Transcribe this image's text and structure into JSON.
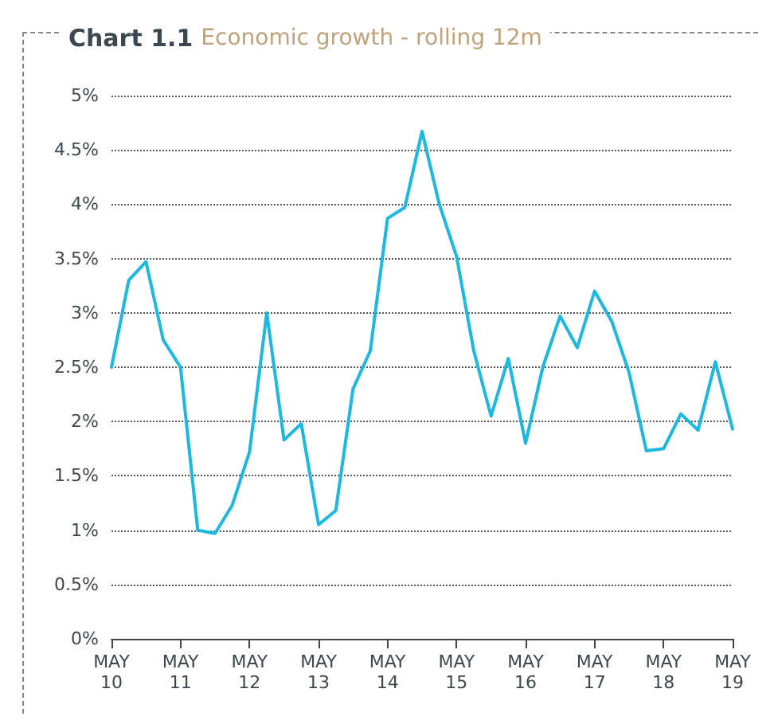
{
  "chart_data": {
    "type": "line",
    "title": "Chart 1.1",
    "subtitle": "Economic growth - rolling 12m",
    "categories": [
      "MAY 10",
      null,
      null,
      null,
      "MAY 11",
      null,
      null,
      null,
      "MAY 12",
      null,
      null,
      null,
      "MAY 13",
      null,
      null,
      null,
      "MAY 14",
      null,
      null,
      null,
      "MAY 15",
      null,
      null,
      null,
      "MAY 16",
      null,
      null,
      null,
      "MAY 17",
      null,
      null,
      null,
      "MAY 18",
      null,
      null,
      null,
      "MAY 19"
    ],
    "series": [
      {
        "color": "#1cb8e0",
        "values": [
          2.5,
          3.3,
          3.47,
          2.75,
          2.5,
          1.0,
          0.97,
          1.23,
          1.72,
          3.0,
          1.83,
          1.98,
          1.05,
          1.18,
          2.3,
          2.65,
          3.87,
          3.97,
          4.67,
          4.0,
          3.52,
          2.65,
          2.05,
          2.58,
          1.8,
          2.5,
          2.97,
          2.68,
          3.2,
          2.92,
          2.45,
          1.73,
          1.75,
          2.07,
          1.92,
          2.55,
          1.93
        ]
      }
    ],
    "ylim": [
      0,
      5
    ],
    "yticks": [
      {
        "value": 0,
        "label": "0%"
      },
      {
        "value": 0.5,
        "label": "0.5%"
      },
      {
        "value": 1,
        "label": "1%"
      },
      {
        "value": 1.5,
        "label": "1.5%"
      },
      {
        "value": 2,
        "label": "2%"
      },
      {
        "value": 2.5,
        "label": "2.5%"
      },
      {
        "value": 3,
        "label": "3%"
      },
      {
        "value": 3.5,
        "label": "3.5%"
      },
      {
        "value": 4,
        "label": "4%"
      },
      {
        "value": 4.5,
        "label": "4.5%"
      },
      {
        "value": 5,
        "label": "5%"
      }
    ],
    "grid": "y",
    "marker": "none",
    "line_style": "solid"
  }
}
